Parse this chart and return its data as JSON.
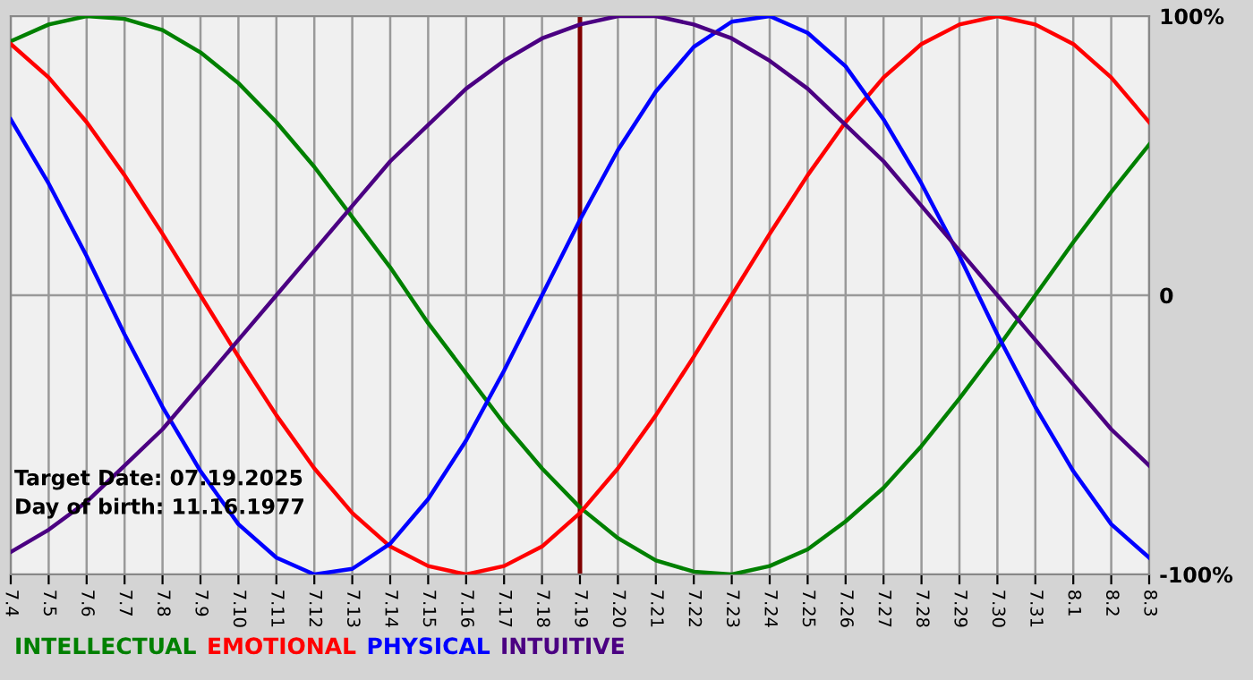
{
  "chart_data": {
    "type": "line",
    "categories": [
      "7.4",
      "7.5",
      "7.6",
      "7.7",
      "7.8",
      "7.9",
      "7.10",
      "7.11",
      "7.12",
      "7.13",
      "7.14",
      "7.15",
      "7.16",
      "7.17",
      "7.18",
      "7.19",
      "7.20",
      "7.21",
      "7.22",
      "7.23",
      "7.24",
      "7.25",
      "7.26",
      "7.27",
      "7.28",
      "7.29",
      "7.30",
      "7.31",
      "8.1",
      "8.2",
      "8.3"
    ],
    "series": [
      {
        "name": "INTELLECTUAL",
        "color": "#008000",
        "values": [
          91,
          97,
          100,
          99,
          95,
          87,
          76,
          62,
          46,
          28,
          10,
          -10,
          -28,
          -46,
          -62,
          -76,
          -87,
          -95,
          -99,
          -100,
          -97,
          -91,
          -81,
          -69,
          -54,
          -37,
          -19,
          0,
          19,
          37,
          54
        ]
      },
      {
        "name": "EMOTIONAL",
        "color": "#ff0000",
        "values": [
          90,
          78,
          62,
          43,
          22,
          0,
          -22,
          -43,
          -62,
          -78,
          -90,
          -97,
          -100,
          -97,
          -90,
          -78,
          -62,
          -43,
          -22,
          0,
          22,
          43,
          62,
          78,
          90,
          97,
          100,
          97,
          90,
          78,
          62
        ]
      },
      {
        "name": "PHYSICAL",
        "color": "#0000ff",
        "values": [
          63,
          40,
          14,
          -14,
          -40,
          -63,
          -82,
          -94,
          -100,
          -98,
          -89,
          -73,
          -52,
          -27,
          0,
          27,
          52,
          73,
          89,
          98,
          100,
          94,
          82,
          63,
          40,
          14,
          -14,
          -40,
          -63,
          -82,
          -94
        ]
      },
      {
        "name": "INTUITIVE",
        "color": "#4b0082",
        "values": [
          -92,
          -84,
          -74,
          -61,
          -48,
          -32,
          -16,
          0,
          16,
          32,
          48,
          61,
          74,
          84,
          92,
          97,
          100,
          100,
          97,
          92,
          84,
          74,
          61,
          48,
          32,
          16,
          0,
          -16,
          -32,
          -48,
          -61
        ]
      }
    ],
    "ylim": [
      -100,
      100
    ],
    "yticks": [
      {
        "value": 100,
        "label": "100%"
      },
      0,
      {
        "value": -100,
        "label": "-100%"
      }
    ],
    "grid": true,
    "legend": "bottom left",
    "marker": "none",
    "line_style": "solid",
    "ref_lines": [
      {
        "axis": "x",
        "value": "7.19",
        "color": "#800000"
      }
    ],
    "annotations": [
      "Target Date: 07.19.2025",
      "Day of birth: 11.16.1977"
    ]
  }
}
